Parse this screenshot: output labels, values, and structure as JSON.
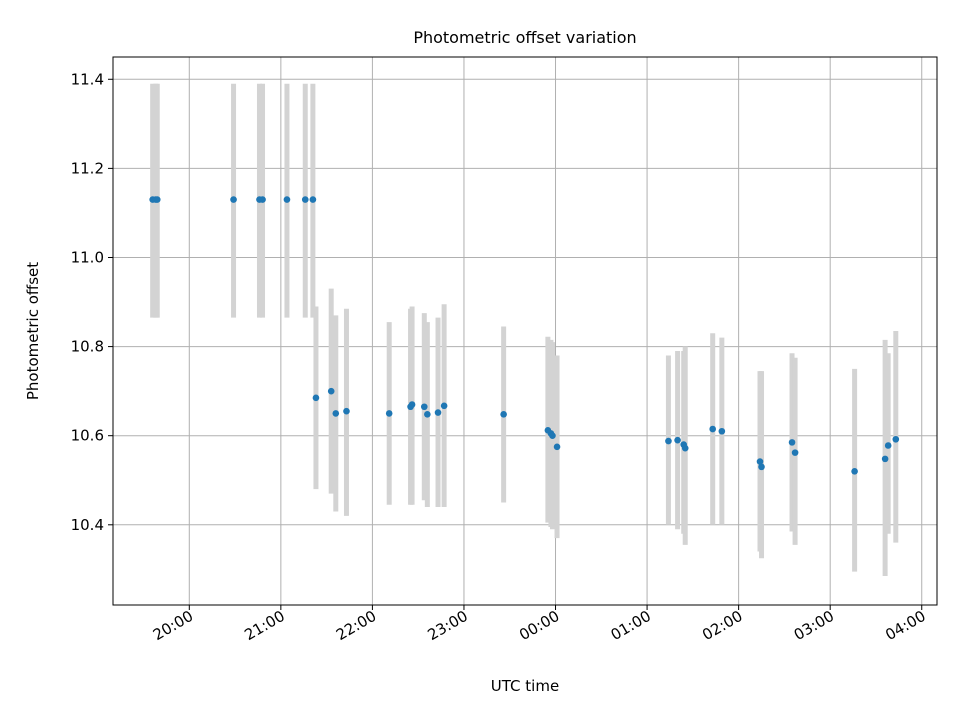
{
  "chart_data": {
    "type": "scatter",
    "title": "Photometric offset variation",
    "xlabel": "UTC time",
    "ylabel": "Photometric offset",
    "grid": true,
    "x_axis": "time",
    "xlim": [
      "19:10",
      "04:10"
    ],
    "ylim": [
      10.22,
      11.45
    ],
    "xticks": [
      "20:00",
      "21:00",
      "22:00",
      "23:00",
      "00:00",
      "01:00",
      "02:00",
      "03:00",
      "04:00"
    ],
    "yticks": [
      "10.4",
      "10.6",
      "10.8",
      "11.0",
      "11.2",
      "11.4"
    ],
    "colors": {
      "points": "#1f77b4",
      "errorbars": "#d3d3d3",
      "grid": "#b0b0b0"
    },
    "series": [
      {
        "points": [
          {
            "x": "19:36",
            "y": 11.13,
            "lo": 10.865,
            "hi": 11.39
          },
          {
            "x": "19:38",
            "y": 11.13,
            "lo": 10.865,
            "hi": 11.39
          },
          {
            "x": "19:39",
            "y": 11.13,
            "lo": 10.865,
            "hi": 11.39
          },
          {
            "x": "20:29",
            "y": 11.13,
            "lo": 10.865,
            "hi": 11.39
          },
          {
            "x": "20:46",
            "y": 11.13,
            "lo": 10.865,
            "hi": 11.39
          },
          {
            "x": "20:48",
            "y": 11.13,
            "lo": 10.865,
            "hi": 11.39
          },
          {
            "x": "21:04",
            "y": 11.13,
            "lo": 10.865,
            "hi": 11.39
          },
          {
            "x": "21:16",
            "y": 11.13,
            "lo": 10.865,
            "hi": 11.39
          },
          {
            "x": "21:21",
            "y": 11.13,
            "lo": 10.865,
            "hi": 11.39
          },
          {
            "x": "21:23",
            "y": 10.685,
            "lo": 10.48,
            "hi": 10.89
          },
          {
            "x": "21:33",
            "y": 10.7,
            "lo": 10.47,
            "hi": 10.93
          },
          {
            "x": "21:36",
            "y": 10.65,
            "lo": 10.43,
            "hi": 10.87
          },
          {
            "x": "21:43",
            "y": 10.655,
            "lo": 10.42,
            "hi": 10.885
          },
          {
            "x": "22:11",
            "y": 10.65,
            "lo": 10.445,
            "hi": 10.855
          },
          {
            "x": "22:25",
            "y": 10.665,
            "lo": 10.445,
            "hi": 10.885
          },
          {
            "x": "22:26",
            "y": 10.67,
            "lo": 10.445,
            "hi": 10.89
          },
          {
            "x": "22:34",
            "y": 10.665,
            "lo": 10.455,
            "hi": 10.875
          },
          {
            "x": "22:36",
            "y": 10.648,
            "lo": 10.44,
            "hi": 10.855
          },
          {
            "x": "22:43",
            "y": 10.652,
            "lo": 10.44,
            "hi": 10.865
          },
          {
            "x": "22:47",
            "y": 10.667,
            "lo": 10.44,
            "hi": 10.895
          },
          {
            "x": "23:26",
            "y": 10.648,
            "lo": 10.45,
            "hi": 10.845
          },
          {
            "x": "23:55",
            "y": 10.612,
            "lo": 10.405,
            "hi": 10.822
          },
          {
            "x": "23:57",
            "y": 10.605,
            "lo": 10.395,
            "hi": 10.815
          },
          {
            "x": "23:58",
            "y": 10.6,
            "lo": 10.39,
            "hi": 10.81
          },
          {
            "x": "00:01",
            "y": 10.575,
            "lo": 10.37,
            "hi": 10.78
          },
          {
            "x": "01:14",
            "y": 10.588,
            "lo": 10.4,
            "hi": 10.78
          },
          {
            "x": "01:20",
            "y": 10.59,
            "lo": 10.39,
            "hi": 10.79
          },
          {
            "x": "01:24",
            "y": 10.58,
            "lo": 10.38,
            "hi": 10.79
          },
          {
            "x": "01:25",
            "y": 10.572,
            "lo": 10.355,
            "hi": 10.8
          },
          {
            "x": "01:43",
            "y": 10.615,
            "lo": 10.4,
            "hi": 10.83
          },
          {
            "x": "01:49",
            "y": 10.61,
            "lo": 10.4,
            "hi": 10.82
          },
          {
            "x": "02:14",
            "y": 10.542,
            "lo": 10.34,
            "hi": 10.745
          },
          {
            "x": "02:15",
            "y": 10.53,
            "lo": 10.325,
            "hi": 10.745
          },
          {
            "x": "02:35",
            "y": 10.585,
            "lo": 10.385,
            "hi": 10.785
          },
          {
            "x": "02:37",
            "y": 10.562,
            "lo": 10.355,
            "hi": 10.775
          },
          {
            "x": "03:16",
            "y": 10.52,
            "lo": 10.295,
            "hi": 10.75
          },
          {
            "x": "03:36",
            "y": 10.548,
            "lo": 10.285,
            "hi": 10.815
          },
          {
            "x": "03:38",
            "y": 10.578,
            "lo": 10.38,
            "hi": 10.785
          },
          {
            "x": "03:43",
            "y": 10.592,
            "lo": 10.36,
            "hi": 10.835
          }
        ]
      }
    ]
  }
}
